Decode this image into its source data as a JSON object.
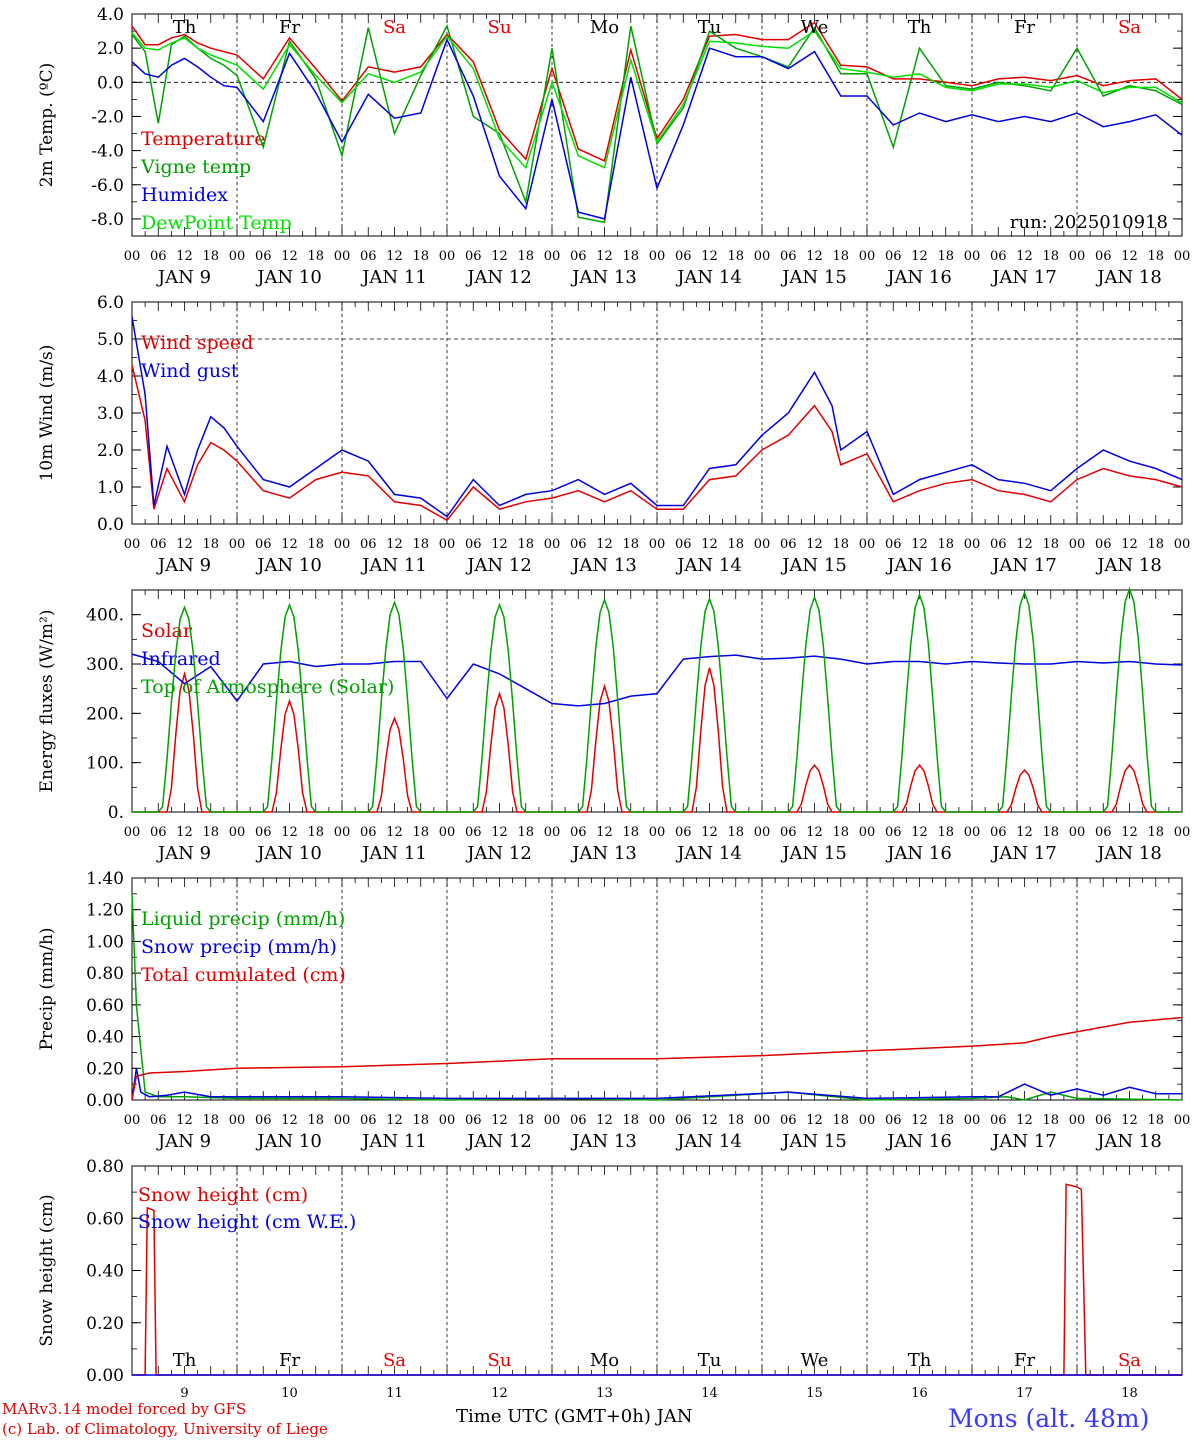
{
  "days": [
    "Th",
    "Fr",
    "Sa",
    "Su",
    "Mo",
    "Tu",
    "We",
    "Th",
    "Fr",
    "Sa"
  ],
  "day_colors": [
    "#000",
    "#000",
    "#e00",
    "#e00",
    "#000",
    "#000",
    "#000",
    "#000",
    "#000",
    "#e00"
  ],
  "hour_ticks": [
    "00",
    "06",
    "12",
    "18"
  ],
  "date_labels": [
    "JAN  9",
    "JAN 10",
    "JAN 11",
    "JAN 12",
    "JAN 13",
    "JAN 14",
    "JAN 15",
    "JAN 16",
    "JAN 17",
    "JAN 18"
  ],
  "bottom_day_numbers": [
    "9",
    "10",
    "11",
    "12",
    "13",
    "14",
    "15",
    "16",
    "17",
    "18"
  ],
  "x_axis_title": "Time UTC (GMT+0h) JAN",
  "footer": {
    "model": "MARv3.14 model forced by GFS",
    "credit": "(c) Lab. of Climatology, University of Liege",
    "station": "Mons (alt. 48m)"
  },
  "colors": {
    "red": "#e00000",
    "green": "#00a000",
    "blue": "#0000e0",
    "lightgreen": "#00e000"
  },
  "chart_data": [
    {
      "type": "line",
      "ylabel": "2m Temp. (ºC)",
      "ylim": [
        -9,
        4
      ],
      "yticks": [
        "4.0",
        "2.0",
        "0.0",
        "-2.0",
        "-4.0",
        "-6.0",
        "-8.0"
      ],
      "annotation": "run: 2025010918",
      "series": [
        {
          "name": "Temperature",
          "color": "red",
          "x": [
            0,
            3,
            6,
            9,
            12,
            15,
            18,
            21,
            24,
            30,
            36,
            42,
            48,
            54,
            60,
            66,
            72,
            78,
            84,
            90,
            96,
            102,
            108,
            114,
            120,
            126,
            132,
            138,
            144,
            150,
            156,
            162,
            168,
            174,
            180,
            186,
            192,
            198,
            204,
            210,
            216,
            222,
            228,
            234,
            240
          ],
          "values": [
            3.3,
            2.2,
            2.2,
            2.6,
            2.8,
            2.3,
            2.0,
            1.8,
            1.6,
            0.2,
            2.6,
            0.8,
            -1.1,
            0.9,
            0.6,
            0.9,
            2.8,
            1.2,
            -2.8,
            -4.5,
            0.8,
            -3.9,
            -4.6,
            1.9,
            -3.3,
            -1.0,
            2.7,
            2.8,
            2.5,
            2.5,
            3.5,
            1.0,
            0.9,
            0.2,
            0.2,
            0.0,
            -0.2,
            0.2,
            0.3,
            0.1,
            0.4,
            -0.2,
            0.1,
            0.2,
            -1.0
          ]
        },
        {
          "name": "Vigne temp",
          "color": "green",
          "x": [
            0,
            3,
            6,
            9,
            12,
            15,
            18,
            21,
            24,
            30,
            36,
            42,
            48,
            54,
            60,
            66,
            72,
            78,
            84,
            90,
            96,
            102,
            108,
            114,
            120,
            126,
            132,
            138,
            144,
            150,
            156,
            162,
            168,
            174,
            180,
            186,
            192,
            198,
            204,
            210,
            216,
            222,
            228,
            234,
            240
          ],
          "values": [
            2.8,
            1.8,
            -2.4,
            2.2,
            2.7,
            2.0,
            1.4,
            1.0,
            0.4,
            -3.8,
            2.4,
            0.2,
            -4.3,
            3.2,
            -3.0,
            0.4,
            3.3,
            -2.0,
            -3.0,
            -7.0,
            2.0,
            -7.9,
            -8.2,
            3.3,
            -3.6,
            -1.5,
            3.0,
            2.0,
            1.5,
            0.9,
            3.2,
            0.5,
            0.5,
            -3.8,
            2.0,
            -0.2,
            -0.4,
            0.0,
            -0.2,
            -0.5,
            2.0,
            -0.8,
            -0.2,
            -0.5,
            -1.3
          ]
        },
        {
          "name": "Humidex",
          "color": "blue",
          "x": [
            0,
            3,
            6,
            9,
            12,
            15,
            18,
            21,
            24,
            30,
            36,
            42,
            48,
            54,
            60,
            66,
            72,
            78,
            84,
            90,
            96,
            102,
            108,
            114,
            120,
            126,
            132,
            138,
            144,
            150,
            156,
            162,
            168,
            174,
            180,
            186,
            192,
            198,
            204,
            210,
            216,
            222,
            228,
            234,
            240
          ],
          "values": [
            1.2,
            0.5,
            0.3,
            1.0,
            1.4,
            0.9,
            0.3,
            -0.2,
            -0.3,
            -2.3,
            1.7,
            -0.6,
            -3.5,
            -0.7,
            -2.1,
            -1.8,
            2.5,
            -0.8,
            -5.5,
            -7.4,
            -1.0,
            -7.6,
            -8.0,
            0.3,
            -6.2,
            -2.5,
            2.0,
            1.5,
            1.5,
            0.8,
            1.8,
            -0.8,
            -0.8,
            -2.5,
            -1.8,
            -2.3,
            -1.9,
            -2.3,
            -2.0,
            -2.3,
            -1.8,
            -2.6,
            -2.3,
            -1.9,
            -3.1
          ]
        },
        {
          "name": "DewPoint Temp",
          "color": "lightgreen",
          "x": [
            0,
            3,
            6,
            9,
            12,
            15,
            18,
            21,
            24,
            30,
            36,
            42,
            48,
            54,
            60,
            66,
            72,
            78,
            84,
            90,
            96,
            102,
            108,
            114,
            120,
            126,
            132,
            138,
            144,
            150,
            156,
            162,
            168,
            174,
            180,
            186,
            192,
            198,
            204,
            210,
            216,
            222,
            228,
            234,
            240
          ],
          "values": [
            2.9,
            2.0,
            1.9,
            2.3,
            2.6,
            2.0,
            1.6,
            1.3,
            1.0,
            -0.4,
            2.2,
            0.4,
            -1.2,
            0.5,
            0.0,
            0.6,
            2.7,
            0.8,
            -3.3,
            -5.0,
            0.0,
            -4.3,
            -5.0,
            1.3,
            -3.5,
            -1.3,
            2.4,
            2.3,
            2.1,
            2.0,
            3.0,
            0.8,
            0.6,
            0.3,
            0.5,
            -0.3,
            -0.5,
            -0.1,
            -0.1,
            -0.3,
            0.1,
            -0.6,
            -0.3,
            -0.3,
            -1.2
          ]
        }
      ]
    },
    {
      "type": "line",
      "ylabel": "10m Wind (m/s)",
      "ylim": [
        0,
        6
      ],
      "yticks": [
        "6.0",
        "5.0",
        "4.0",
        "3.0",
        "2.0",
        "1.0",
        "0.0"
      ],
      "series": [
        {
          "name": "Wind speed",
          "color": "red",
          "x": [
            0,
            3,
            5,
            8,
            12,
            15,
            18,
            21,
            24,
            30,
            36,
            42,
            48,
            54,
            60,
            66,
            72,
            78,
            84,
            90,
            96,
            102,
            108,
            114,
            120,
            126,
            132,
            138,
            144,
            150,
            156,
            160,
            162,
            168,
            174,
            180,
            186,
            192,
            198,
            204,
            210,
            216,
            222,
            228,
            234,
            240
          ],
          "values": [
            4.3,
            2.8,
            0.4,
            1.5,
            0.6,
            1.6,
            2.2,
            2.0,
            1.7,
            0.9,
            0.7,
            1.2,
            1.4,
            1.3,
            0.6,
            0.5,
            0.1,
            1.0,
            0.4,
            0.6,
            0.7,
            0.9,
            0.6,
            0.9,
            0.4,
            0.4,
            1.2,
            1.3,
            2.0,
            2.4,
            3.2,
            2.5,
            1.6,
            1.9,
            0.6,
            0.9,
            1.1,
            1.2,
            0.9,
            0.8,
            0.6,
            1.2,
            1.5,
            1.3,
            1.2,
            1.0
          ]
        },
        {
          "name": "Wind gust",
          "color": "blue",
          "x": [
            0,
            3,
            5,
            8,
            12,
            15,
            18,
            21,
            24,
            30,
            36,
            42,
            48,
            54,
            60,
            66,
            72,
            78,
            84,
            90,
            96,
            102,
            108,
            114,
            120,
            126,
            132,
            138,
            144,
            150,
            156,
            160,
            162,
            168,
            174,
            180,
            186,
            192,
            198,
            204,
            210,
            216,
            222,
            228,
            234,
            240
          ],
          "values": [
            5.6,
            3.5,
            0.5,
            2.1,
            0.8,
            2.0,
            2.9,
            2.6,
            2.1,
            1.2,
            1.0,
            1.5,
            2.0,
            1.7,
            0.8,
            0.7,
            0.2,
            1.2,
            0.5,
            0.8,
            0.9,
            1.2,
            0.8,
            1.1,
            0.5,
            0.5,
            1.5,
            1.6,
            2.4,
            3.0,
            4.1,
            3.2,
            2.0,
            2.5,
            0.8,
            1.2,
            1.4,
            1.6,
            1.2,
            1.1,
            0.9,
            1.5,
            2.0,
            1.7,
            1.5,
            1.2
          ]
        }
      ]
    },
    {
      "type": "line",
      "ylabel": "Energy fluxes (W/m²)",
      "ylim": [
        0,
        450
      ],
      "yticks": [
        "400.",
        "300.",
        "200.",
        "100.",
        "0."
      ],
      "series": [
        {
          "name": "Solar",
          "color": "red",
          "peaks": [
            280,
            225,
            190,
            240,
            255,
            292,
            95,
            95,
            85,
            95
          ]
        },
        {
          "name": "Infrared",
          "color": "blue",
          "x": [
            0,
            6,
            12,
            18,
            24,
            30,
            36,
            42,
            48,
            54,
            60,
            66,
            72,
            78,
            84,
            90,
            96,
            102,
            108,
            114,
            120,
            126,
            132,
            138,
            144,
            150,
            156,
            162,
            168,
            174,
            180,
            186,
            192,
            198,
            204,
            210,
            216,
            222,
            228,
            234,
            240
          ],
          "values": [
            320,
            305,
            260,
            295,
            225,
            300,
            305,
            295,
            300,
            300,
            305,
            305,
            230,
            300,
            280,
            250,
            220,
            215,
            220,
            235,
            240,
            310,
            315,
            318,
            310,
            312,
            316,
            310,
            300,
            305,
            305,
            300,
            305,
            302,
            300,
            300,
            305,
            302,
            305,
            300,
            298
          ]
        },
        {
          "name": "Top of Atmosphere (Solar)",
          "color": "green",
          "peaks": [
            415,
            420,
            425,
            420,
            430,
            432,
            435,
            440,
            445,
            452
          ]
        }
      ]
    },
    {
      "type": "line",
      "ylabel": "Precip (mm/h)",
      "ylim": [
        0,
        1.4
      ],
      "yticks": [
        "1.40",
        "1.20",
        "1.00",
        "0.80",
        "0.60",
        "0.40",
        "0.20",
        "0.00"
      ],
      "series": [
        {
          "name": "Liquid precip (mm/h)",
          "color": "green",
          "x": [
            0,
            1,
            3,
            6,
            12,
            24,
            48,
            72,
            96,
            120,
            150,
            168,
            192,
            200,
            204,
            210,
            216,
            240
          ],
          "values": [
            1.3,
            0.6,
            0.05,
            0.02,
            0.02,
            0.01,
            0.01,
            0.0,
            0.01,
            0.0,
            0.05,
            0.0,
            0.01,
            0.02,
            0.0,
            0.05,
            0.01,
            0.0
          ]
        },
        {
          "name": "Snow precip (mm/h)",
          "color": "blue",
          "x": [
            0,
            1,
            2,
            4,
            8,
            12,
            18,
            24,
            48,
            72,
            96,
            120,
            150,
            168,
            192,
            198,
            204,
            210,
            216,
            222,
            228,
            234,
            240
          ],
          "values": [
            0.0,
            0.2,
            0.05,
            0.02,
            0.03,
            0.05,
            0.02,
            0.02,
            0.02,
            0.01,
            0.01,
            0.01,
            0.05,
            0.01,
            0.02,
            0.02,
            0.1,
            0.03,
            0.07,
            0.03,
            0.08,
            0.04,
            0.04
          ]
        },
        {
          "name": "Total cumulated (cm)",
          "color": "red",
          "x": [
            0,
            1,
            4,
            12,
            24,
            48,
            72,
            96,
            120,
            144,
            168,
            192,
            204,
            210,
            216,
            228,
            240
          ],
          "values": [
            0.0,
            0.15,
            0.17,
            0.18,
            0.2,
            0.21,
            0.23,
            0.26,
            0.26,
            0.28,
            0.31,
            0.34,
            0.36,
            0.4,
            0.43,
            0.49,
            0.52
          ]
        }
      ]
    },
    {
      "type": "line",
      "ylabel": "Snow height (cm)",
      "ylim": [
        0,
        0.8
      ],
      "yticks": [
        "0.80",
        "0.60",
        "0.40",
        "0.20",
        "0.00"
      ],
      "series": [
        {
          "name": "Snow height (cm)",
          "color": "red",
          "x": [
            0,
            3,
            3.5,
            5,
            5.5,
            240
          ],
          "values": [
            0,
            0,
            0.64,
            0.63,
            0,
            0
          ],
          "x2": [
            210,
            213,
            213.5,
            216,
            217,
            218,
            240
          ],
          "values2": [
            0,
            0,
            0.73,
            0.72,
            0.71,
            0,
            0
          ]
        },
        {
          "name": "Snow height (cm W.E.)",
          "color": "blue",
          "x": [
            0,
            240
          ],
          "values": [
            0,
            0
          ]
        }
      ]
    }
  ]
}
